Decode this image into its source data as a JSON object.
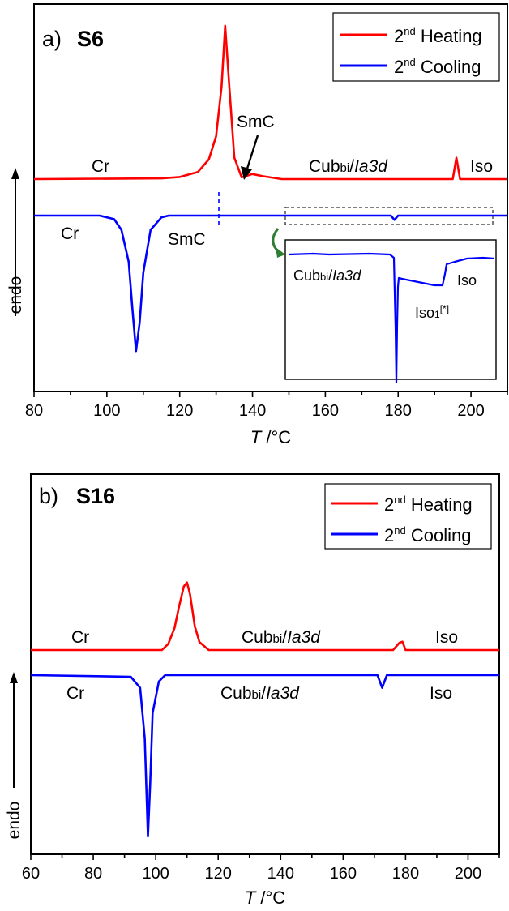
{
  "colors": {
    "heating": "#ff0000",
    "cooling": "#0000ff",
    "axis": "#000000",
    "inset_arrow": "#2e7d32"
  },
  "chart_data": [
    {
      "type": "line",
      "panel_label": "a)",
      "title": "S6",
      "xlabel": "T /°C",
      "ylabel": "endo",
      "xlim": [
        80,
        210
      ],
      "x_ticks": [
        80,
        100,
        120,
        140,
        160,
        180,
        200
      ],
      "legend": {
        "position": "top-right",
        "entries": [
          {
            "label": "2nd Heating"
          },
          {
            "label": "2nd Cooling"
          }
        ]
      },
      "series": [
        {
          "name": "2nd Heating",
          "color": "#ff0000",
          "x": [
            80,
            115,
            120,
            125,
            128,
            130,
            131.5,
            132.5,
            133.5,
            135,
            137,
            140,
            143,
            148,
            195,
            196,
            197,
            210
          ],
          "y": [
            0,
            0.2,
            0.6,
            2.0,
            5.5,
            12,
            26,
            43,
            28,
            6,
            0.5,
            1.4,
            0.8,
            0,
            0,
            6,
            0,
            0
          ]
        },
        {
          "name": "2nd Cooling",
          "color": "#0000ff",
          "x": [
            80,
            98,
            102,
            104,
            106,
            107,
            108,
            109,
            110,
            112,
            115,
            117,
            178,
            179,
            180,
            210
          ],
          "y": [
            0,
            0,
            -1,
            -4,
            -13,
            -26,
            -38,
            -30,
            -16,
            -4,
            -0.5,
            0,
            0,
            -1.2,
            0,
            0
          ]
        }
      ],
      "annotations": [
        "Cr",
        "SmC",
        "Cubbi/Ia3d",
        "Iso",
        "Cr",
        "SmC"
      ],
      "inset": {
        "labels": [
          "Cubbi/Ia3d",
          "Iso1[*]",
          "Iso"
        ],
        "x": [
          0,
          30,
          50,
          100,
          125,
          130,
          132,
          133,
          134,
          135,
          136,
          140,
          150,
          165,
          180,
          190,
          193,
          195,
          205,
          220,
          240,
          254
        ],
        "y": [
          0,
          1,
          0,
          1,
          0,
          -4,
          -90,
          -158,
          -85,
          -40,
          -29,
          -30,
          -32,
          -35,
          -38,
          -38,
          -24,
          -12,
          -9,
          -5,
          -4,
          -5
        ]
      }
    },
    {
      "type": "line",
      "panel_label": "b)",
      "title": "S16",
      "xlabel": "T /°C",
      "ylabel": "endo",
      "xlim": [
        60,
        210
      ],
      "x_ticks": [
        60,
        80,
        100,
        120,
        140,
        160,
        180,
        200
      ],
      "legend": {
        "position": "top-right",
        "entries": [
          {
            "label": "2nd Heating"
          },
          {
            "label": "2nd Cooling"
          }
        ]
      },
      "series": [
        {
          "name": "2nd Heating",
          "color": "#ff0000",
          "x": [
            60,
            102,
            104,
            106,
            107.5,
            109,
            110,
            111,
            112.5,
            114,
            117,
            176,
            178,
            179,
            180,
            210
          ],
          "y": [
            0,
            0,
            1.5,
            5.5,
            11,
            16,
            17,
            14,
            6,
            2,
            0,
            0,
            1.8,
            2.1,
            0,
            0
          ]
        },
        {
          "name": "2nd Cooling",
          "color": "#0000ff",
          "x": [
            60,
            92,
            95,
            96.5,
            97.5,
            98.2,
            99,
            101,
            103,
            171,
            172.5,
            174,
            210
          ],
          "y": [
            0,
            -0.5,
            -4,
            -20,
            -51,
            -35,
            -12,
            -2,
            0,
            0,
            -4,
            0,
            0
          ]
        }
      ],
      "annotations": [
        "Cr",
        "Cubbi/Ia3d",
        "Iso",
        "Cr",
        "Cubbi/Ia3d",
        "Iso"
      ]
    }
  ]
}
